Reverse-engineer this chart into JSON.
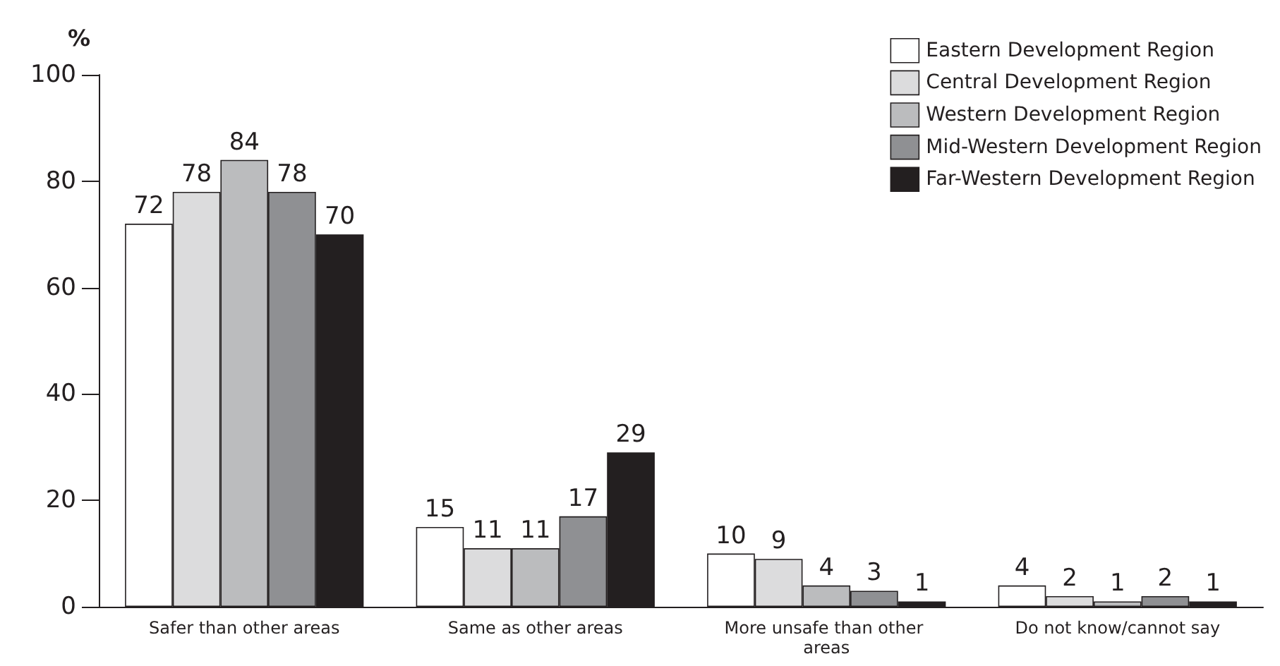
{
  "chart_data": {
    "type": "bar",
    "ylabel": "%",
    "categories": [
      "Safer than other areas",
      "Same as other areas",
      "More unsafe than other areas",
      "Do not know/cannot say"
    ],
    "series": [
      {
        "name": "Eastern Development Region",
        "color": "#ffffff",
        "values": [
          72,
          15,
          10,
          4
        ]
      },
      {
        "name": "Central Development Region",
        "color": "#dcdcdd",
        "values": [
          78,
          11,
          9,
          2
        ]
      },
      {
        "name": "Western Development Region",
        "color": "#bbbcbe",
        "values": [
          84,
          11,
          4,
          1
        ]
      },
      {
        "name": "Mid-Western Development Region",
        "color": "#8f9093",
        "values": [
          78,
          17,
          3,
          2
        ]
      },
      {
        "name": "Far-Western Development Region",
        "color": "#231f20",
        "values": [
          70,
          29,
          1,
          1
        ]
      }
    ],
    "ylim": [
      0,
      100
    ],
    "yticks": [
      0,
      20,
      40,
      60,
      80,
      100
    ],
    "grid": false,
    "legend": "top right",
    "data_labels": true
  }
}
